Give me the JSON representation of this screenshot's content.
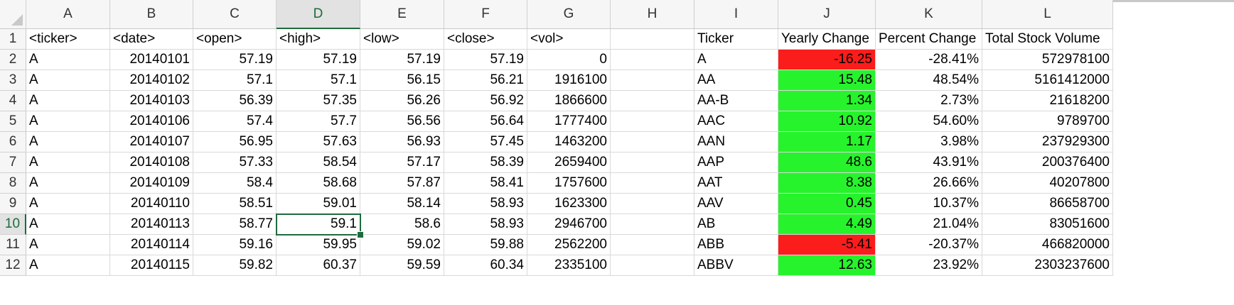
{
  "spreadsheet": {
    "columns": [
      "A",
      "B",
      "C",
      "D",
      "E",
      "F",
      "G",
      "H",
      "I",
      "J",
      "K",
      "L"
    ],
    "active_column": "D",
    "active_row": "10",
    "rows": [
      {
        "num": "1",
        "cells": [
          "<ticker>",
          "<date>",
          "<open>",
          "<high>",
          "<low>",
          "<close>",
          "<vol>",
          "",
          "Ticker",
          "Yearly Change",
          "Percent Change",
          "Total Stock Volume"
        ]
      },
      {
        "num": "2",
        "cells": [
          "A",
          "20140101",
          "57.19",
          "57.19",
          "57.19",
          "57.19",
          "0",
          "",
          "A",
          "-16.25",
          "-28.41%",
          "572978100"
        ]
      },
      {
        "num": "3",
        "cells": [
          "A",
          "20140102",
          "57.1",
          "57.1",
          "56.15",
          "56.21",
          "1916100",
          "",
          "AA",
          "15.48",
          "48.54%",
          "5161412000"
        ]
      },
      {
        "num": "4",
        "cells": [
          "A",
          "20140103",
          "56.39",
          "57.35",
          "56.26",
          "56.92",
          "1866600",
          "",
          "AA-B",
          "1.34",
          "2.73%",
          "21618200"
        ]
      },
      {
        "num": "5",
        "cells": [
          "A",
          "20140106",
          "57.4",
          "57.7",
          "56.56",
          "56.64",
          "1777400",
          "",
          "AAC",
          "10.92",
          "54.60%",
          "9789700"
        ]
      },
      {
        "num": "6",
        "cells": [
          "A",
          "20140107",
          "56.95",
          "57.63",
          "56.93",
          "57.45",
          "1463200",
          "",
          "AAN",
          "1.17",
          "3.98%",
          "237929300"
        ]
      },
      {
        "num": "7",
        "cells": [
          "A",
          "20140108",
          "57.33",
          "58.54",
          "57.17",
          "58.39",
          "2659400",
          "",
          "AAP",
          "48.6",
          "43.91%",
          "200376400"
        ]
      },
      {
        "num": "8",
        "cells": [
          "A",
          "20140109",
          "58.4",
          "58.68",
          "57.87",
          "58.41",
          "1757600",
          "",
          "AAT",
          "8.38",
          "26.66%",
          "40207800"
        ]
      },
      {
        "num": "9",
        "cells": [
          "A",
          "20140110",
          "58.51",
          "59.01",
          "58.14",
          "58.93",
          "1623300",
          "",
          "AAV",
          "0.45",
          "10.37%",
          "86658700"
        ]
      },
      {
        "num": "10",
        "cells": [
          "A",
          "20140113",
          "58.77",
          "59.1",
          "58.6",
          "58.93",
          "2946700",
          "",
          "AB",
          "4.49",
          "21.04%",
          "83051600"
        ]
      },
      {
        "num": "11",
        "cells": [
          "A",
          "20140114",
          "59.16",
          "59.95",
          "59.02",
          "59.88",
          "2562200",
          "",
          "ABB",
          "-5.41",
          "-20.37%",
          "466820000"
        ]
      },
      {
        "num": "12",
        "cells": [
          "A",
          "20140115",
          "59.82",
          "60.37",
          "59.59",
          "60.34",
          "2335100",
          "",
          "ABBV",
          "12.63",
          "23.92%",
          "2303237600"
        ]
      }
    ],
    "fill_colors": {
      "negative": "#fb1c1c",
      "positive": "#27f32c"
    },
    "selection_color": "#1e6b3c"
  }
}
